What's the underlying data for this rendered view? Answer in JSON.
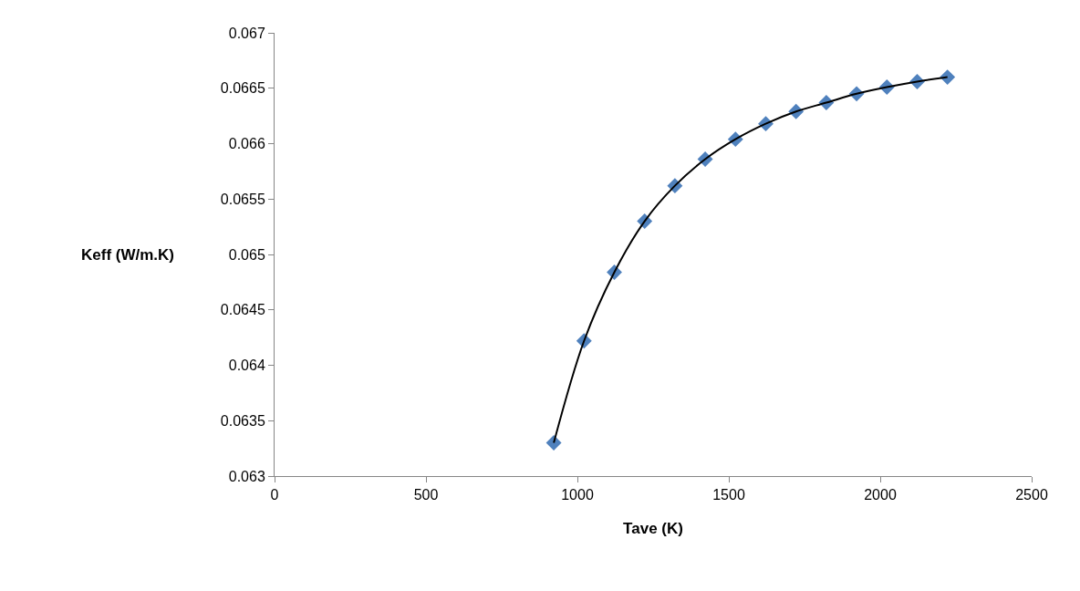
{
  "chart_data": {
    "type": "scatter",
    "xlabel": "Tave (K)",
    "ylabel": "Keff (W/m.K)",
    "x": [
      922,
      1022,
      1122,
      1222,
      1322,
      1422,
      1522,
      1622,
      1722,
      1822,
      1922,
      2022,
      2122,
      2222
    ],
    "series": [
      {
        "color": "#4f81bd",
        "marker": "diamond",
        "values": [
          0.0633,
          0.06422,
          0.06484,
          0.0653,
          0.06562,
          0.06586,
          0.06604,
          0.06618,
          0.06629,
          0.06637,
          0.06645,
          0.06651,
          0.06656,
          0.0666
        ]
      },
      {
        "type": "line",
        "color": "#000000",
        "marker": "none",
        "line_style": "solid",
        "x": [
          922,
          1022,
          1122,
          1222,
          1322,
          1422,
          1522,
          1622,
          1722,
          1822,
          1922,
          2022,
          2122,
          2222
        ],
        "values": [
          0.0633,
          0.06422,
          0.06484,
          0.0653,
          0.06562,
          0.06586,
          0.06604,
          0.06618,
          0.06629,
          0.06637,
          0.06645,
          0.06651,
          0.06656,
          0.0666
        ]
      }
    ],
    "xlim": [
      0,
      2500
    ],
    "xticks": [
      0,
      500,
      1000,
      1500,
      2000,
      2500
    ],
    "ylim": [
      0.063,
      0.067
    ],
    "yticks": [
      0.063,
      0.0635,
      0.064,
      0.0645,
      0.065,
      0.0655,
      0.066,
      0.0665,
      0.067
    ]
  }
}
